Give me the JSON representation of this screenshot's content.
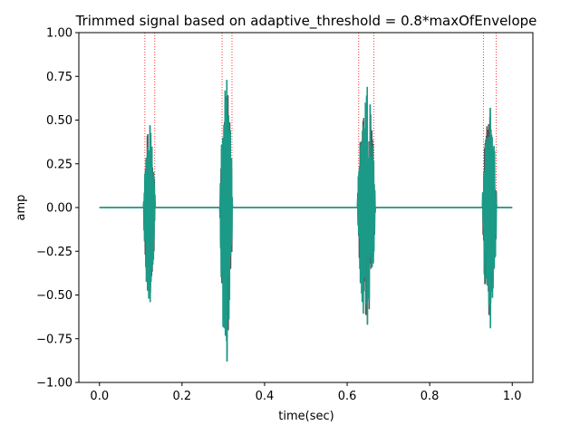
{
  "chart_data": {
    "type": "line",
    "title": "Trimmed signal based on adaptive_threshold = 0.8*maxOfEnvelope",
    "xlabel": "time(sec)",
    "ylabel": "amp",
    "xlim": [
      -0.05,
      1.05
    ],
    "ylim": [
      -1.0,
      1.0
    ],
    "xticks": [
      0.0,
      0.2,
      0.4,
      0.6,
      0.8,
      1.0
    ],
    "xtick_labels": [
      "0.0",
      "0.2",
      "0.4",
      "0.6",
      "0.8",
      "1.0"
    ],
    "yticks": [
      -1.0,
      -0.75,
      -0.5,
      -0.25,
      0.0,
      0.25,
      0.5,
      0.75,
      1.0
    ],
    "ytick_labels": [
      "−1.00",
      "−0.75",
      "−0.50",
      "−0.25",
      "0.00",
      "0.25",
      "0.50",
      "0.75",
      "1.00"
    ],
    "grid": false,
    "colors": {
      "original": "#555555",
      "trimmed": "#1a9a87",
      "threshold_markers": "#ff0000"
    },
    "series": [
      {
        "role": "original signal",
        "x_range": [
          0.0,
          1.0
        ],
        "bursts": [
          {
            "start": 0.107,
            "end": 0.135,
            "peak_pos": 0.47,
            "peak_neg": -0.54
          },
          {
            "start": 0.292,
            "end": 0.322,
            "peak_pos": 0.73,
            "peak_neg": -0.88
          },
          {
            "start": 0.625,
            "end": 0.668,
            "peak_pos": 0.69,
            "peak_neg": -0.67
          },
          {
            "start": 0.928,
            "end": 0.962,
            "peak_pos": 0.57,
            "peak_neg": -0.69
          }
        ]
      },
      {
        "role": "trimmed signal",
        "x_range": [
          0.0,
          1.0
        ],
        "bursts": [
          {
            "start": 0.107,
            "end": 0.135,
            "peak_pos": 0.47,
            "peak_neg": -0.54
          },
          {
            "start": 0.292,
            "end": 0.322,
            "peak_pos": 0.73,
            "peak_neg": -0.88
          },
          {
            "start": 0.625,
            "end": 0.668,
            "peak_pos": 0.69,
            "peak_neg": -0.67
          },
          {
            "start": 0.928,
            "end": 0.962,
            "peak_pos": 0.57,
            "peak_neg": -0.69
          }
        ]
      }
    ],
    "threshold_markers_x": [
      0.11,
      0.134,
      0.297,
      0.321,
      0.628,
      0.665,
      0.93,
      0.961
    ]
  }
}
